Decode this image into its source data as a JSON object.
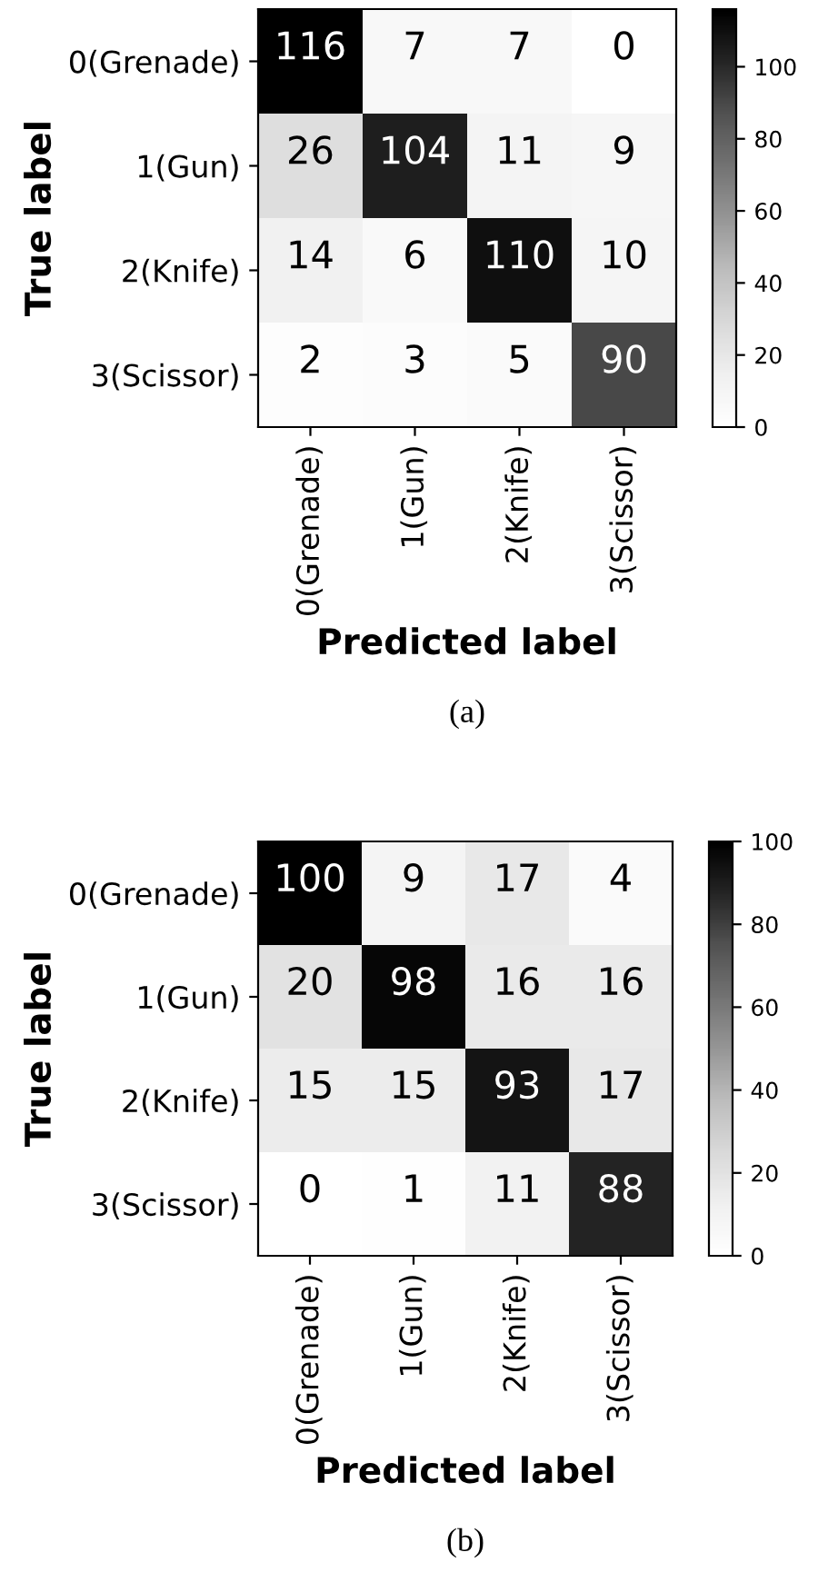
{
  "chart_data": [
    {
      "type": "heatmap",
      "xlabel": "Predicted label",
      "ylabel": "True label",
      "categories": [
        "0(Grenade)",
        "1(Gun)",
        "2(Knife)",
        "3(Scissor)"
      ],
      "y_categories": [
        "0(Grenade)",
        "1(Gun)",
        "2(Knife)",
        "3(Scissor)"
      ],
      "cells": [
        [
          116,
          7,
          7,
          0
        ],
        [
          26,
          104,
          11,
          9
        ],
        [
          14,
          6,
          110,
          10
        ],
        [
          2,
          3,
          5,
          90
        ]
      ],
      "clim": [
        0,
        116
      ],
      "cticks": [
        0,
        20,
        40,
        60,
        80,
        100
      ],
      "data_labels": true,
      "annotations": [
        "(a)"
      ]
    },
    {
      "type": "heatmap",
      "xlabel": "Predicted label",
      "ylabel": "True label",
      "categories": [
        "0(Grenade)",
        "1(Gun)",
        "2(Knife)",
        "3(Scissor)"
      ],
      "y_categories": [
        "0(Grenade)",
        "1(Gun)",
        "2(Knife)",
        "3(Scissor)"
      ],
      "cells": [
        [
          100,
          9,
          17,
          4
        ],
        [
          20,
          98,
          16,
          16
        ],
        [
          15,
          15,
          93,
          17
        ],
        [
          0,
          1,
          11,
          88
        ]
      ],
      "clim": [
        0,
        100
      ],
      "cticks": [
        0,
        20,
        40,
        60,
        80,
        100
      ],
      "data_labels": true,
      "annotations": [
        "(b)"
      ]
    }
  ]
}
